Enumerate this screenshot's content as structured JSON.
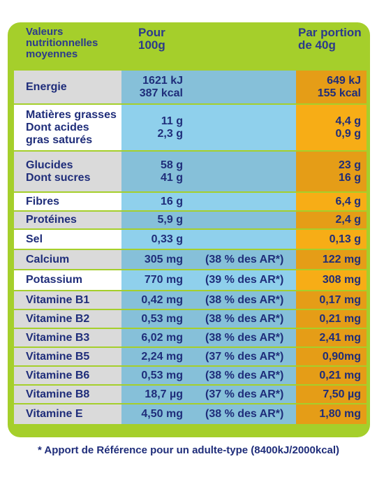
{
  "header": {
    "col1": [
      "Valeurs",
      "nutritionnelles",
      "moyennes"
    ],
    "col2": [
      "Pour",
      "100g"
    ],
    "col3": [
      "Par portion",
      "de 40g"
    ]
  },
  "rows": [
    {
      "shade": "dark",
      "h": 47,
      "labels": [
        "Energie"
      ],
      "v100": [
        "1621 kJ",
        "387 kcal"
      ],
      "ar": "",
      "vportion": [
        "649 kJ",
        "155 kcal"
      ]
    },
    {
      "shade": "light",
      "h": 65,
      "labels": [
        "Matières grasses",
        "Dont acides",
        "gras saturés"
      ],
      "v100": [
        "11 g",
        "2,3 g"
      ],
      "ar": "",
      "vportion": [
        "4,4 g",
        "0,9 g"
      ]
    },
    {
      "shade": "dark",
      "h": 57,
      "labels": [
        "Glucides",
        "Dont sucres"
      ],
      "v100": [
        "58 g",
        "41 g"
      ],
      "ar": "",
      "vportion": [
        "23 g",
        "16 g"
      ]
    },
    {
      "shade": "light",
      "h": 25,
      "labels": [
        "Fibres"
      ],
      "v100": [
        "16 g"
      ],
      "ar": "",
      "vportion": [
        "6,4 g"
      ]
    },
    {
      "shade": "dark",
      "h": 24,
      "labels": [
        "Protéines"
      ],
      "v100": [
        "5,9 g"
      ],
      "ar": "",
      "vportion": [
        "2,4 g"
      ]
    },
    {
      "shade": "light",
      "h": 27,
      "labels": [
        "Sel"
      ],
      "v100": [
        "0,33 g"
      ],
      "ar": "",
      "vportion": [
        "0,13 g"
      ]
    },
    {
      "shade": "dark",
      "h": 27,
      "labels": [
        "Calcium"
      ],
      "v100": [
        "305 mg"
      ],
      "ar": "(38 % des AR*)",
      "vportion": [
        "122 mg"
      ]
    },
    {
      "shade": "light",
      "h": 28,
      "labels": [
        "Potassium"
      ],
      "v100": [
        "770 mg"
      ],
      "ar": "(39 % des AR*)",
      "vportion": [
        "308 mg"
      ]
    },
    {
      "shade": "dark",
      "h": 25,
      "labels": [
        "Vitamine B1"
      ],
      "v100": [
        "0,42 mg"
      ],
      "ar": "(38 % des AR*)",
      "vportion": [
        "0,17 mg"
      ]
    },
    {
      "shade": "dark",
      "h": 25,
      "labels": [
        "Vitamine B2"
      ],
      "v100": [
        "0,53 mg"
      ],
      "ar": "(38 % des AR*)",
      "vportion": [
        "0,21 mg"
      ]
    },
    {
      "shade": "dark",
      "h": 25,
      "labels": [
        "Vitamine B3"
      ],
      "v100": [
        "6,02 mg"
      ],
      "ar": "(38 % des AR*)",
      "vportion": [
        "2,41 mg"
      ]
    },
    {
      "shade": "dark",
      "h": 25,
      "labels": [
        "Vitamine B5"
      ],
      "v100": [
        "2,24 mg"
      ],
      "ar": "(37 % des AR*)",
      "vportion": [
        "0,90mg"
      ]
    },
    {
      "shade": "dark",
      "h": 25,
      "labels": [
        "Vitamine B6"
      ],
      "v100": [
        "0,53 mg"
      ],
      "ar": "(38 % des AR*)",
      "vportion": [
        "0,21 mg"
      ]
    },
    {
      "shade": "dark",
      "h": 25,
      "labels": [
        "Vitamine B8"
      ],
      "v100": [
        "18,7 µg"
      ],
      "ar": "(37 % des AR*)",
      "vportion": [
        "7,50 µg"
      ]
    },
    {
      "shade": "dark",
      "h": 28,
      "labels": [
        "Vitamine E"
      ],
      "v100": [
        "4,50 mg"
      ],
      "ar": "(38 % des AR*)",
      "vportion": [
        "1,80 mg"
      ]
    }
  ],
  "footnote": "* Apport de Référence pour un adulte-type (8400kJ/2000kcal)"
}
